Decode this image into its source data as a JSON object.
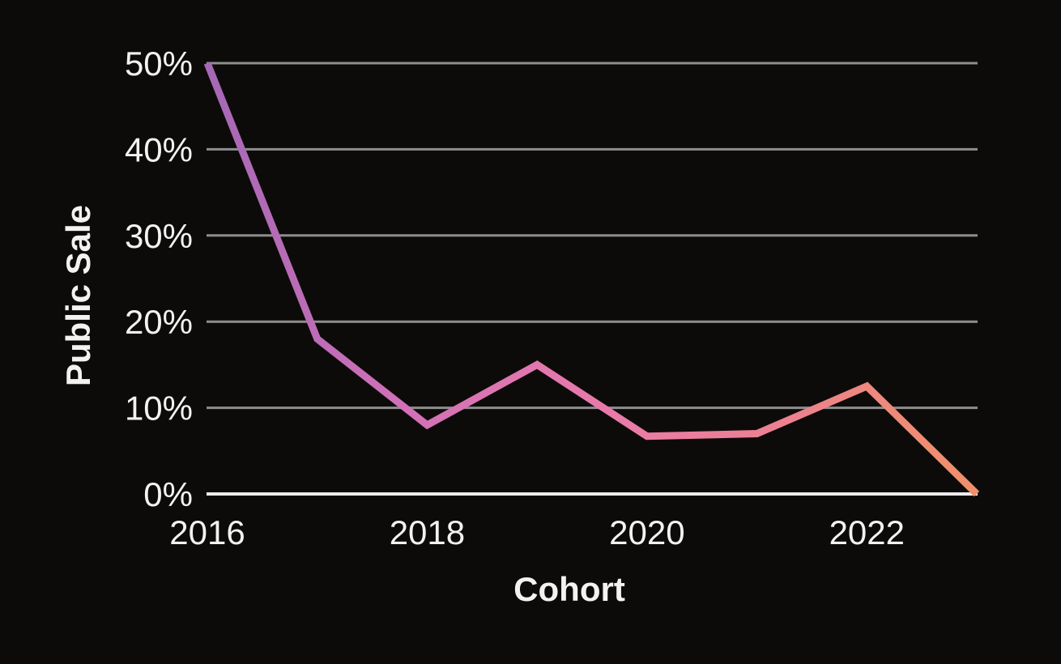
{
  "chart_data": {
    "type": "line",
    "title": "",
    "xlabel": "Cohort",
    "ylabel": "Public Sale",
    "x": [
      2016,
      2017,
      2018,
      2019,
      2020,
      2021,
      2022,
      2023
    ],
    "series": [
      {
        "name": "Public Sale",
        "values": [
          50,
          18,
          8,
          15,
          6.7,
          7,
          12.5,
          0
        ]
      }
    ],
    "xlim": [
      2016,
      2023
    ],
    "ylim": [
      0,
      50
    ],
    "x_tick_values": [
      2016,
      2018,
      2020,
      2022
    ],
    "x_tick_labels": [
      "2016",
      "2018",
      "2020",
      "2022"
    ],
    "y_tick_values": [
      0,
      10,
      20,
      30,
      40,
      50
    ],
    "y_tick_labels": [
      "0%",
      "10%",
      "20%",
      "30%",
      "40%",
      "50%"
    ],
    "grid": true,
    "legend": false,
    "colors": {
      "background": "#0d0b0a",
      "text": "#f4f2f1",
      "gridline": "#8e8e8e",
      "zero_axis_line": "#ececec",
      "line_gradient": [
        "#a568b5",
        "#d170b8",
        "#e87aab",
        "#ec8190",
        "#f09168"
      ]
    }
  }
}
